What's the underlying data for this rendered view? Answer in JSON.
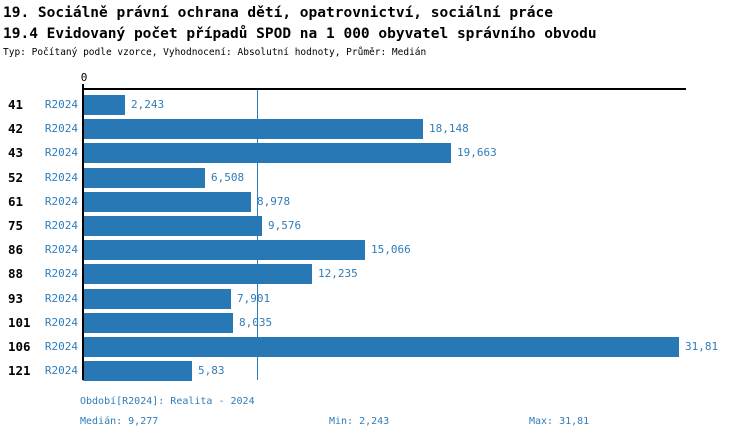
{
  "chart_data": {
    "type": "bar",
    "orientation": "horizontal",
    "title": "19. Sociálně právní ochrana dětí, opatrovnictví, sociální práce",
    "subtitle": "19.4 Evidovaný počet případů SPOD na 1 000 obyvatel správního obvodu",
    "meta_line": "Typ: Počítaný podle vzorce, Vyhodnocení: Absolutní hodnoty, Průměr: Medián",
    "x_tick_labels": [
      "0"
    ],
    "xlim": [
      0,
      32.2
    ],
    "grid": false,
    "categories": [
      "41",
      "42",
      "43",
      "52",
      "61",
      "75",
      "86",
      "88",
      "93",
      "101",
      "106",
      "121"
    ],
    "series": [
      {
        "name": "R2024",
        "values": [
          2.243,
          18.148,
          19.663,
          6.508,
          8.978,
          9.576,
          15.066,
          12.235,
          7.901,
          8.035,
          31.81,
          5.83
        ],
        "value_labels": [
          "2,243",
          "18,148",
          "19,663",
          "6,508",
          "8,978",
          "9,576",
          "15,066",
          "12,235",
          "7,901",
          "8,035",
          "31,81",
          "5,83"
        ]
      }
    ],
    "median": {
      "value": 9.277,
      "label": "Medián: 9,277"
    },
    "annotations": {
      "period": "Období[R2024]: Realita - 2024",
      "min": "Min: 2,243",
      "max": "Max: 31,81"
    },
    "colors": {
      "bar": "#2878b5",
      "blue_text": "#2f7cba",
      "median_line": "#2f7cba",
      "axis": "#000000",
      "heading_text": "#000000"
    }
  }
}
